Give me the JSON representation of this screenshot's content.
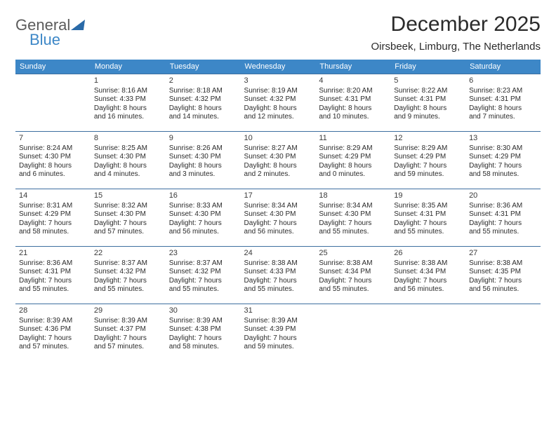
{
  "logo": {
    "line1": "General",
    "line2": "Blue"
  },
  "title": "December 2025",
  "location": "Oirsbeek, Limburg, The Netherlands",
  "colors": {
    "header_bg": "#3d87c7",
    "header_text": "#ffffff",
    "cell_border": "#3d6fa0",
    "text": "#2b2b2b",
    "logo_gray": "#5b5b5b",
    "logo_blue": "#3d87c7",
    "triangle": "#2a6aa8"
  },
  "day_headers": [
    "Sunday",
    "Monday",
    "Tuesday",
    "Wednesday",
    "Thursday",
    "Friday",
    "Saturday"
  ],
  "weeks": [
    [
      {
        "n": "",
        "l": []
      },
      {
        "n": "1",
        "l": [
          "Sunrise: 8:16 AM",
          "Sunset: 4:33 PM",
          "Daylight: 8 hours",
          "and 16 minutes."
        ]
      },
      {
        "n": "2",
        "l": [
          "Sunrise: 8:18 AM",
          "Sunset: 4:32 PM",
          "Daylight: 8 hours",
          "and 14 minutes."
        ]
      },
      {
        "n": "3",
        "l": [
          "Sunrise: 8:19 AM",
          "Sunset: 4:32 PM",
          "Daylight: 8 hours",
          "and 12 minutes."
        ]
      },
      {
        "n": "4",
        "l": [
          "Sunrise: 8:20 AM",
          "Sunset: 4:31 PM",
          "Daylight: 8 hours",
          "and 10 minutes."
        ]
      },
      {
        "n": "5",
        "l": [
          "Sunrise: 8:22 AM",
          "Sunset: 4:31 PM",
          "Daylight: 8 hours",
          "and 9 minutes."
        ]
      },
      {
        "n": "6",
        "l": [
          "Sunrise: 8:23 AM",
          "Sunset: 4:31 PM",
          "Daylight: 8 hours",
          "and 7 minutes."
        ]
      }
    ],
    [
      {
        "n": "7",
        "l": [
          "Sunrise: 8:24 AM",
          "Sunset: 4:30 PM",
          "Daylight: 8 hours",
          "and 6 minutes."
        ]
      },
      {
        "n": "8",
        "l": [
          "Sunrise: 8:25 AM",
          "Sunset: 4:30 PM",
          "Daylight: 8 hours",
          "and 4 minutes."
        ]
      },
      {
        "n": "9",
        "l": [
          "Sunrise: 8:26 AM",
          "Sunset: 4:30 PM",
          "Daylight: 8 hours",
          "and 3 minutes."
        ]
      },
      {
        "n": "10",
        "l": [
          "Sunrise: 8:27 AM",
          "Sunset: 4:30 PM",
          "Daylight: 8 hours",
          "and 2 minutes."
        ]
      },
      {
        "n": "11",
        "l": [
          "Sunrise: 8:29 AM",
          "Sunset: 4:29 PM",
          "Daylight: 8 hours",
          "and 0 minutes."
        ]
      },
      {
        "n": "12",
        "l": [
          "Sunrise: 8:29 AM",
          "Sunset: 4:29 PM",
          "Daylight: 7 hours",
          "and 59 minutes."
        ]
      },
      {
        "n": "13",
        "l": [
          "Sunrise: 8:30 AM",
          "Sunset: 4:29 PM",
          "Daylight: 7 hours",
          "and 58 minutes."
        ]
      }
    ],
    [
      {
        "n": "14",
        "l": [
          "Sunrise: 8:31 AM",
          "Sunset: 4:29 PM",
          "Daylight: 7 hours",
          "and 58 minutes."
        ]
      },
      {
        "n": "15",
        "l": [
          "Sunrise: 8:32 AM",
          "Sunset: 4:30 PM",
          "Daylight: 7 hours",
          "and 57 minutes."
        ]
      },
      {
        "n": "16",
        "l": [
          "Sunrise: 8:33 AM",
          "Sunset: 4:30 PM",
          "Daylight: 7 hours",
          "and 56 minutes."
        ]
      },
      {
        "n": "17",
        "l": [
          "Sunrise: 8:34 AM",
          "Sunset: 4:30 PM",
          "Daylight: 7 hours",
          "and 56 minutes."
        ]
      },
      {
        "n": "18",
        "l": [
          "Sunrise: 8:34 AM",
          "Sunset: 4:30 PM",
          "Daylight: 7 hours",
          "and 55 minutes."
        ]
      },
      {
        "n": "19",
        "l": [
          "Sunrise: 8:35 AM",
          "Sunset: 4:31 PM",
          "Daylight: 7 hours",
          "and 55 minutes."
        ]
      },
      {
        "n": "20",
        "l": [
          "Sunrise: 8:36 AM",
          "Sunset: 4:31 PM",
          "Daylight: 7 hours",
          "and 55 minutes."
        ]
      }
    ],
    [
      {
        "n": "21",
        "l": [
          "Sunrise: 8:36 AM",
          "Sunset: 4:31 PM",
          "Daylight: 7 hours",
          "and 55 minutes."
        ]
      },
      {
        "n": "22",
        "l": [
          "Sunrise: 8:37 AM",
          "Sunset: 4:32 PM",
          "Daylight: 7 hours",
          "and 55 minutes."
        ]
      },
      {
        "n": "23",
        "l": [
          "Sunrise: 8:37 AM",
          "Sunset: 4:32 PM",
          "Daylight: 7 hours",
          "and 55 minutes."
        ]
      },
      {
        "n": "24",
        "l": [
          "Sunrise: 8:38 AM",
          "Sunset: 4:33 PM",
          "Daylight: 7 hours",
          "and 55 minutes."
        ]
      },
      {
        "n": "25",
        "l": [
          "Sunrise: 8:38 AM",
          "Sunset: 4:34 PM",
          "Daylight: 7 hours",
          "and 55 minutes."
        ]
      },
      {
        "n": "26",
        "l": [
          "Sunrise: 8:38 AM",
          "Sunset: 4:34 PM",
          "Daylight: 7 hours",
          "and 56 minutes."
        ]
      },
      {
        "n": "27",
        "l": [
          "Sunrise: 8:38 AM",
          "Sunset: 4:35 PM",
          "Daylight: 7 hours",
          "and 56 minutes."
        ]
      }
    ],
    [
      {
        "n": "28",
        "l": [
          "Sunrise: 8:39 AM",
          "Sunset: 4:36 PM",
          "Daylight: 7 hours",
          "and 57 minutes."
        ]
      },
      {
        "n": "29",
        "l": [
          "Sunrise: 8:39 AM",
          "Sunset: 4:37 PM",
          "Daylight: 7 hours",
          "and 57 minutes."
        ]
      },
      {
        "n": "30",
        "l": [
          "Sunrise: 8:39 AM",
          "Sunset: 4:38 PM",
          "Daylight: 7 hours",
          "and 58 minutes."
        ]
      },
      {
        "n": "31",
        "l": [
          "Sunrise: 8:39 AM",
          "Sunset: 4:39 PM",
          "Daylight: 7 hours",
          "and 59 minutes."
        ]
      },
      {
        "n": "",
        "l": []
      },
      {
        "n": "",
        "l": []
      },
      {
        "n": "",
        "l": []
      }
    ]
  ]
}
